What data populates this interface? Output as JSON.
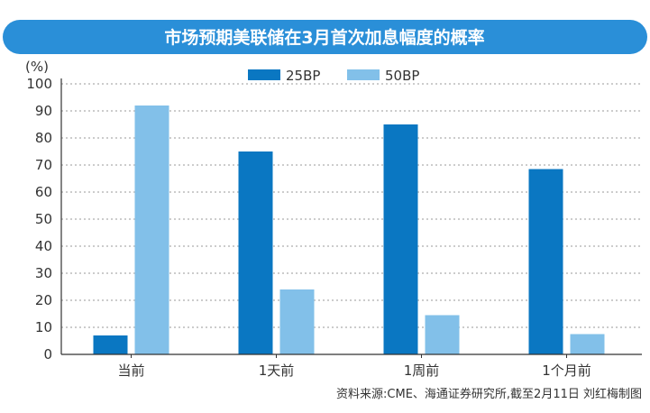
{
  "chart_data": {
    "type": "bar",
    "title": "市场预期美联储在3月首次加息幅度的概率",
    "ylabel": "(%)",
    "ylim": [
      0,
      100
    ],
    "yticks": [
      0,
      10,
      20,
      30,
      40,
      50,
      60,
      70,
      80,
      90,
      100
    ],
    "grid": true,
    "legend_position": "top",
    "categories": [
      "当前",
      "1天前",
      "1周前",
      "1个月前"
    ],
    "series": [
      {
        "name": "25BP",
        "color": "#0a77c2",
        "values": [
          7,
          75,
          85,
          68.5
        ]
      },
      {
        "name": "50BP",
        "color": "#82c0e9",
        "values": [
          92,
          24,
          14.5,
          7.5
        ]
      }
    ],
    "source": "资料来源:CME、海通证券研究所,截至2月11日 刘红梅制图"
  },
  "colors": {
    "title_banner": "#2a8fd8",
    "title_text": "#ffffff",
    "axis": "#333333",
    "grid": "#9a9a9a"
  }
}
